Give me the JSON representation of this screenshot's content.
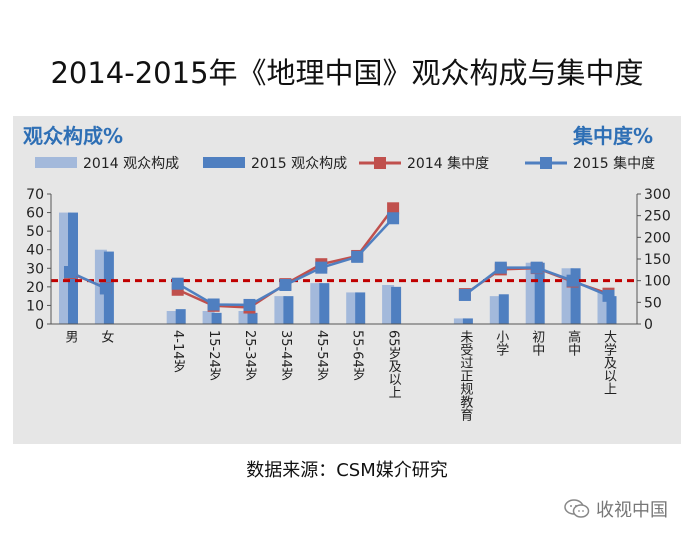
{
  "header": {
    "title": "2014-2015年《地理中国》观众构成与集中度"
  },
  "footer": {
    "source": "数据来源：CSM媒介研究",
    "watermark": "收视中国",
    "watermark_icon": "wechat-icon"
  },
  "chart_data": {
    "type": "bar",
    "title": "2014-2015年《地理中国》观众构成与集中度",
    "ylabel": "观众构成%",
    "y2label": "集中度%",
    "ylim": [
      0,
      70
    ],
    "y2lim": [
      0,
      300
    ],
    "yticks": [
      "0",
      "10",
      "20",
      "30",
      "40",
      "50",
      "60",
      "70"
    ],
    "y2ticks": [
      "0",
      "50",
      "100",
      "150",
      "200",
      "250",
      "300"
    ],
    "reference_line": {
      "axis": "y2",
      "value": 100,
      "color": "#c00000",
      "style": "dashed"
    },
    "legend_position": "top",
    "groups": [
      {
        "categories": [
          "男",
          "女"
        ]
      },
      {
        "categories": [
          "4-14岁",
          "15-24岁",
          "25-34岁",
          "35-44岁",
          "45-54岁",
          "55-64岁",
          "65岁及以上"
        ]
      },
      {
        "categories": [
          "未受过正规教育",
          "小学",
          "初中",
          "高中",
          "大学及以上"
        ]
      }
    ],
    "series": [
      {
        "name": "2014 观众构成",
        "type": "bar",
        "axis": "y",
        "color": "#a3b9db",
        "values": [
          60,
          40,
          7,
          7,
          7,
          15,
          22,
          17,
          21,
          3,
          15,
          33,
          30,
          17
        ]
      },
      {
        "name": "2015 观众构成",
        "type": "bar",
        "axis": "y",
        "color": "#4f7fc0",
        "values": [
          60,
          39,
          8,
          6,
          6,
          15,
          22,
          17,
          20,
          3,
          16,
          33,
          30,
          15
        ]
      },
      {
        "name": "2014 集中度",
        "type": "line",
        "axis": "y2",
        "color": "#c0504d",
        "values": [
          118,
          83,
          null,
          79,
          42,
          38,
          92,
          138,
          157,
          267,
          null,
          69,
          126,
          129,
          98,
          70
        ]
      },
      {
        "name": "2015 集中度",
        "type": "line",
        "axis": "y2",
        "color": "#4f7fc0",
        "values": [
          120,
          82,
          null,
          93,
          45,
          44,
          90,
          130,
          155,
          244,
          null,
          67,
          130,
          130,
          100,
          65
        ]
      }
    ],
    "colors": {
      "panel_bg": "#e6e6e6",
      "title_blue": "#2e6fb5",
      "axis": "#555555",
      "text": "#222222"
    }
  }
}
